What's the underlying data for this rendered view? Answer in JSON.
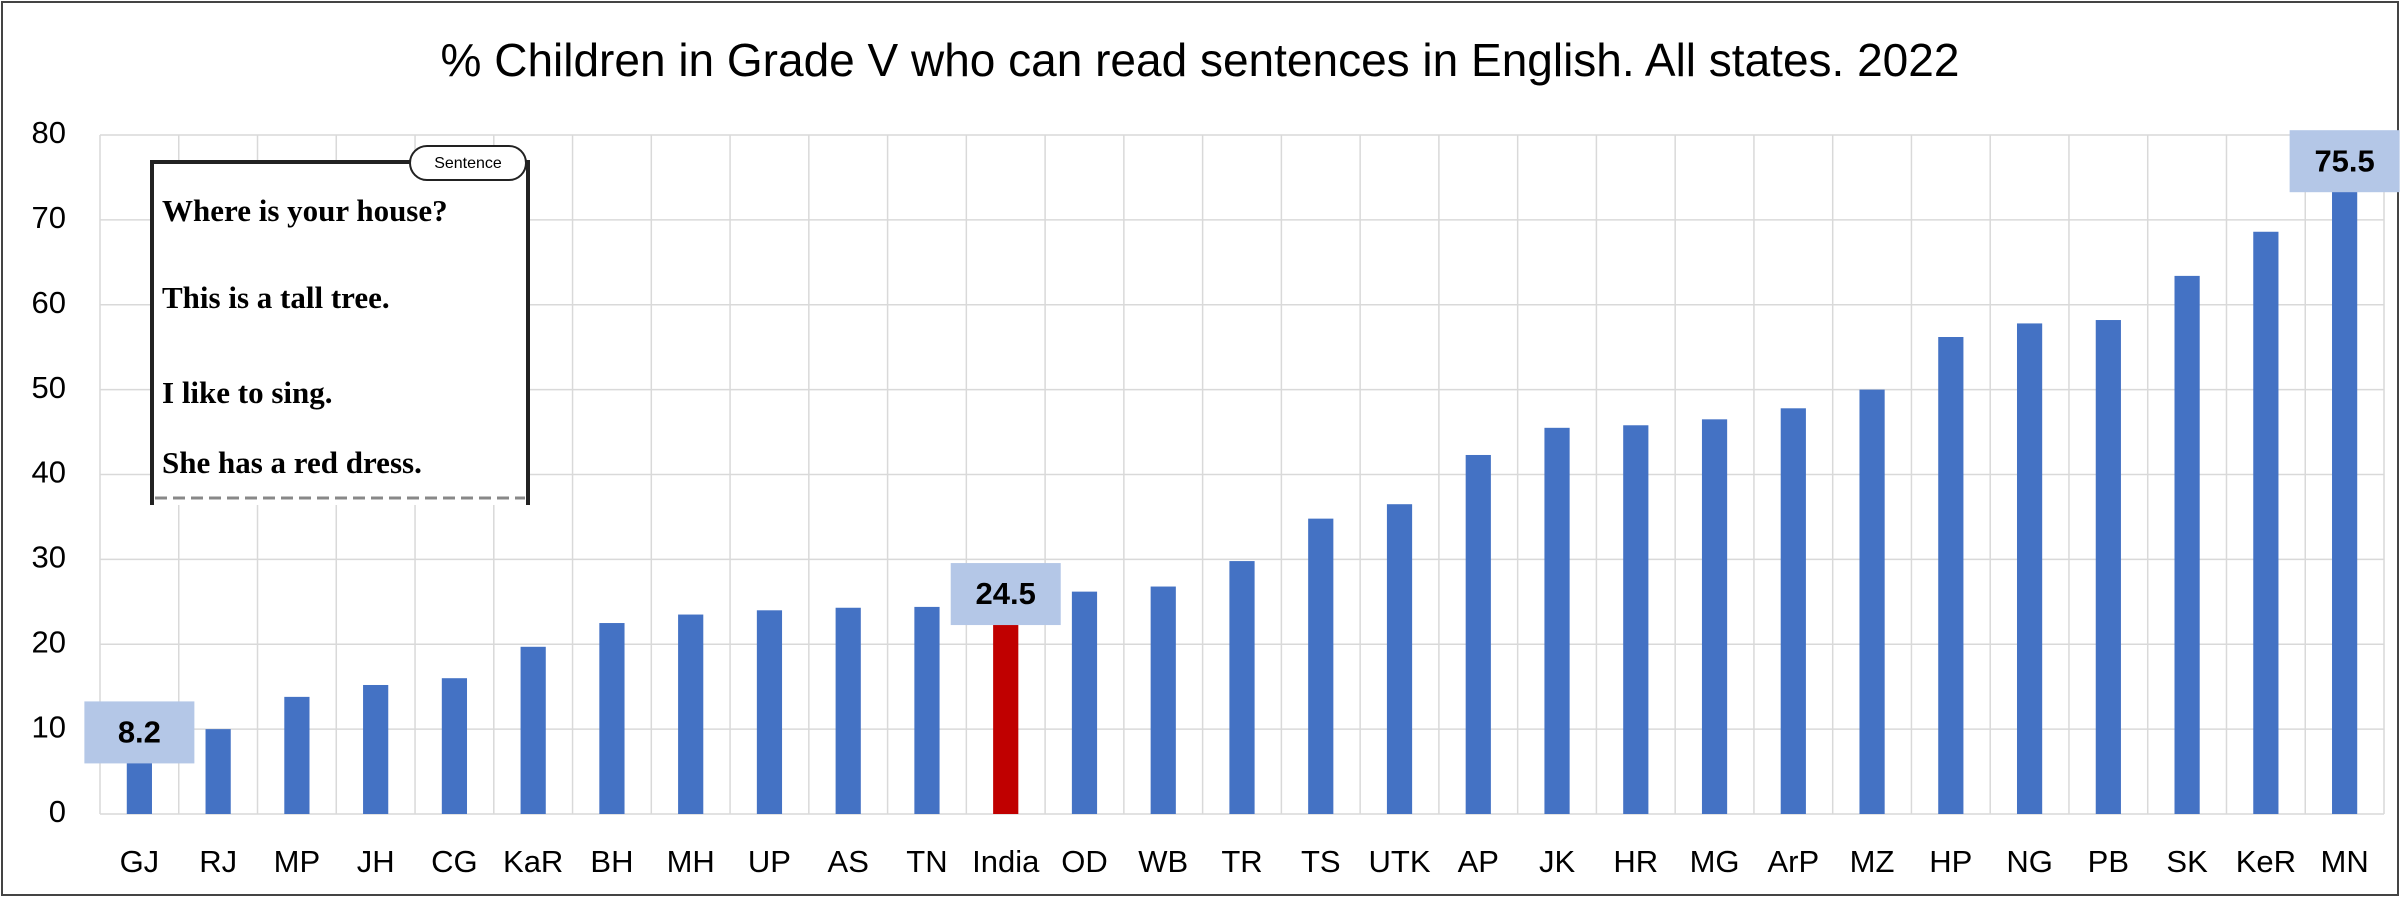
{
  "chart_data": {
    "type": "bar",
    "title": "% Children in Grade V who can read sentences in English. All states. 2022",
    "categories": [
      "GJ",
      "RJ",
      "MP",
      "JH",
      "CG",
      "KaR",
      "BH",
      "MH",
      "UP",
      "AS",
      "TN",
      "India",
      "OD",
      "WB",
      "TR",
      "TS",
      "UTK",
      "AP",
      "JK",
      "HR",
      "MG",
      "ArP",
      "MZ",
      "HP",
      "NG",
      "PB",
      "SK",
      "KeR",
      "MN"
    ],
    "values": [
      8.2,
      10,
      13.8,
      15.2,
      16,
      19.7,
      22.5,
      23.5,
      24,
      24.3,
      24.4,
      24.5,
      26.2,
      26.8,
      29.8,
      34.8,
      36.5,
      42.3,
      45.5,
      45.8,
      46.5,
      47.8,
      50,
      56.2,
      57.8,
      58.2,
      63.4,
      68.6,
      75.5
    ],
    "value_labels": [
      "8.2",
      null,
      null,
      null,
      null,
      null,
      null,
      null,
      null,
      null,
      null,
      "24.5",
      null,
      null,
      null,
      null,
      null,
      null,
      null,
      null,
      null,
      null,
      null,
      null,
      null,
      null,
      null,
      null,
      "75.5"
    ],
    "colors": [
      "#4472c4",
      "#4472c4",
      "#4472c4",
      "#4472c4",
      "#4472c4",
      "#4472c4",
      "#4472c4",
      "#4472c4",
      "#4472c4",
      "#4472c4",
      "#4472c4",
      "#c00000",
      "#4472c4",
      "#4472c4",
      "#4472c4",
      "#4472c4",
      "#4472c4",
      "#4472c4",
      "#4472c4",
      "#4472c4",
      "#4472c4",
      "#4472c4",
      "#4472c4",
      "#4472c4",
      "#4472c4",
      "#4472c4",
      "#4472c4",
      "#4472c4",
      "#4472c4"
    ],
    "ylim": [
      0,
      80
    ],
    "yticks": [
      0,
      10,
      20,
      30,
      40,
      50,
      60,
      70,
      80
    ],
    "grid": true,
    "inset": {
      "tag": "Sentence",
      "lines": [
        "Where is your house?",
        "This is a tall  tree.",
        "I like to sing.",
        "She has a red dress."
      ]
    }
  }
}
